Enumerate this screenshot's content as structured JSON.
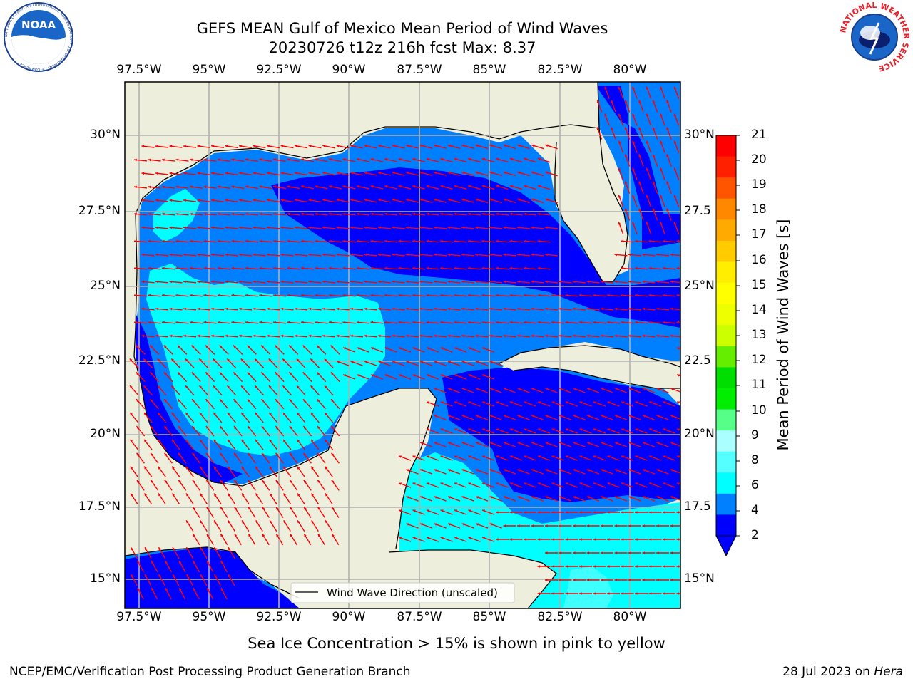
{
  "header": {
    "title_line1": "GEFS MEAN Gulf of Mexico Mean Period of Wind Waves",
    "title_line2": "20230726 t12z 216h fcst   Max: 8.37"
  },
  "logos": {
    "noaa_text": "NOAA",
    "noaa_ring_text": "NATIONAL OCEANIC AND ATMOSPHERIC ADMINISTRATION · U.S. DEPARTMENT OF COMMERCE",
    "nws_ring_text": "NATIONAL WEATHER SERVICE"
  },
  "map": {
    "lon_ticks": [
      "97.5°W",
      "95°W",
      "92.5°W",
      "90°W",
      "87.5°W",
      "85°W",
      "82.5°W",
      "80°W"
    ],
    "lat_ticks_left": [
      "30°N",
      "27.5°N",
      "25°N",
      "22.5°N",
      "20°N",
      "17.5°N",
      "15°N"
    ],
    "lat_ticks_right": [
      "30°N",
      "27.5",
      "25°N",
      "22.5",
      "20°N",
      "17.5",
      "15°N"
    ],
    "legend_label": "Wind Wave Direction (unscaled)",
    "colors": {
      "land": "#eeeedd",
      "band_2_4": "#0080ff",
      "band_lt2": "#0000ff",
      "band_4_6": "#00ffff",
      "band_6_8": "#40ffff",
      "arrow": "#ff0000",
      "grid": "#b0b0b0"
    }
  },
  "colorbar": {
    "label": "Mean Period of Wind Waves [s]",
    "levels": [
      "21",
      "20",
      "19",
      "18",
      "17",
      "16",
      "15",
      "14",
      "13",
      "12",
      "11",
      "10",
      "9",
      "8",
      "6",
      "4",
      "2"
    ],
    "colors": [
      "#ff0000",
      "#ff2000",
      "#ff5500",
      "#ff8800",
      "#ffaa00",
      "#ffcc00",
      "#ffee00",
      "#ffff00",
      "#eeff00",
      "#ccff00",
      "#66ee00",
      "#00dd00",
      "#00ee00",
      "#55ff88",
      "#aaffff",
      "#55ffff",
      "#00ffff",
      "#0080ff",
      "#0000ff"
    ]
  },
  "notes": {
    "sea_ice": "Sea Ice Concentration > 15% is shown in pink to yellow"
  },
  "footer": {
    "left": "NCEP/EMC/Verification Post Processing Product Generation Branch",
    "right_date": "28 Jul 2023 on ",
    "right_machine": "Hera"
  }
}
